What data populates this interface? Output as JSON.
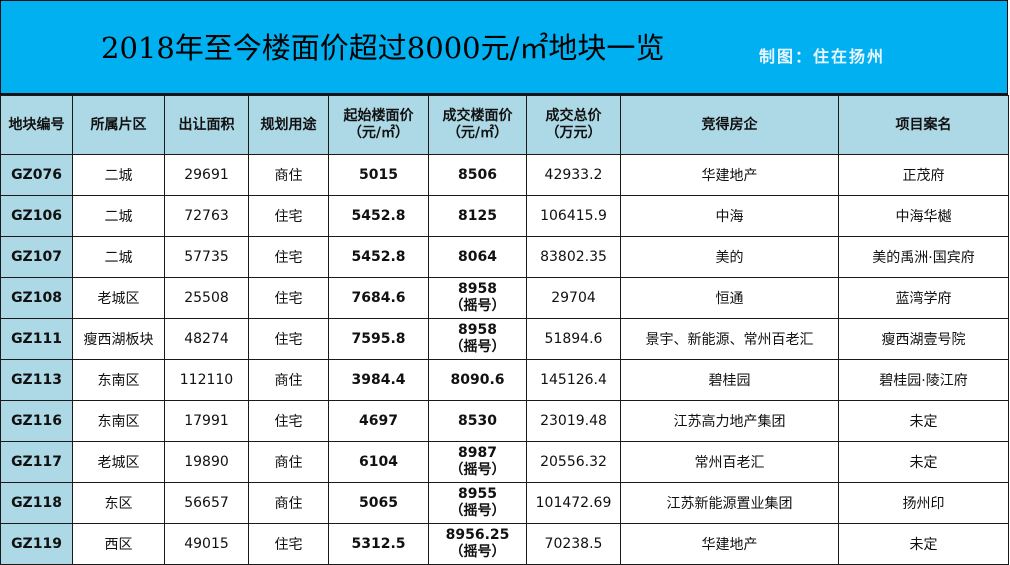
{
  "title": "2018年至今楼面价超过8000元/㎡地块一览",
  "credit": "制图：住在扬州",
  "headers": [
    {
      "line1": "地块编号",
      "line2": ""
    },
    {
      "line1": "所属片区",
      "line2": ""
    },
    {
      "line1": "出让面积",
      "line2": ""
    },
    {
      "line1": "规划用途",
      "line2": ""
    },
    {
      "line1": "起始楼面价",
      "line2": "（元/㎡）"
    },
    {
      "line1": "成交楼面价",
      "line2": "（元/㎡）"
    },
    {
      "line1": "成交总价",
      "line2": "（万元）"
    },
    {
      "line1": "竞得房企",
      "line2": ""
    },
    {
      "line1": "项目案名",
      "line2": ""
    }
  ],
  "rows": [
    {
      "id": "GZ076",
      "district": "二城",
      "area": "29691",
      "use": "商住",
      "start": "5015",
      "deal": "8506",
      "lottery": "",
      "total": "42933.2",
      "developer": "华建地产",
      "project": "正茂府"
    },
    {
      "id": "GZ106",
      "district": "二城",
      "area": "72763",
      "use": "住宅",
      "start": "5452.8",
      "deal": "8125",
      "lottery": "",
      "total": "106415.9",
      "developer": "中海",
      "project": "中海华樾"
    },
    {
      "id": "GZ107",
      "district": "二城",
      "area": "57735",
      "use": "住宅",
      "start": "5452.8",
      "deal": "8064",
      "lottery": "",
      "total": "83802.35",
      "developer": "美的",
      "project": "美的禹洲·国宾府"
    },
    {
      "id": "GZ108",
      "district": "老城区",
      "area": "25508",
      "use": "住宅",
      "start": "7684.6",
      "deal": "8958",
      "lottery": "（摇号）",
      "total": "29704",
      "developer": "恒通",
      "project": "蓝湾学府"
    },
    {
      "id": "GZ111",
      "district": "瘦西湖板块",
      "area": "48274",
      "use": "住宅",
      "start": "7595.8",
      "deal": "8958",
      "lottery": "（摇号）",
      "total": "51894.6",
      "developer": "景宇、新能源、常州百老汇",
      "project": "瘦西湖壹号院"
    },
    {
      "id": "GZ113",
      "district": "东南区",
      "area": "112110",
      "use": "商住",
      "start": "3984.4",
      "deal": "8090.6",
      "lottery": "",
      "total": "145126.4",
      "developer": "碧桂园",
      "project": "碧桂园·陵江府"
    },
    {
      "id": "GZ116",
      "district": "东南区",
      "area": "17991",
      "use": "住宅",
      "start": "4697",
      "deal": "8530",
      "lottery": "",
      "total": "23019.48",
      "developer": "江苏高力地产集团",
      "project": "未定"
    },
    {
      "id": "GZ117",
      "district": "老城区",
      "area": "19890",
      "use": "商住",
      "start": "6104",
      "deal": "8987",
      "lottery": "（摇号）",
      "total": "20556.32",
      "developer": "常州百老汇",
      "project": "未定"
    },
    {
      "id": "GZ118",
      "district": "东区",
      "area": "56657",
      "use": "商住",
      "start": "5065",
      "deal": "8955",
      "lottery": "（摇号）",
      "total": "101472.69",
      "developer": "江苏新能源置业集团",
      "project": "扬州印"
    },
    {
      "id": "GZ119",
      "district": "西区",
      "area": "49015",
      "use": "住宅",
      "start": "5312.5",
      "deal": "8956.25",
      "lottery": "（摇号）",
      "total": "70238.5",
      "developer": "华建地产",
      "project": "未定"
    }
  ]
}
